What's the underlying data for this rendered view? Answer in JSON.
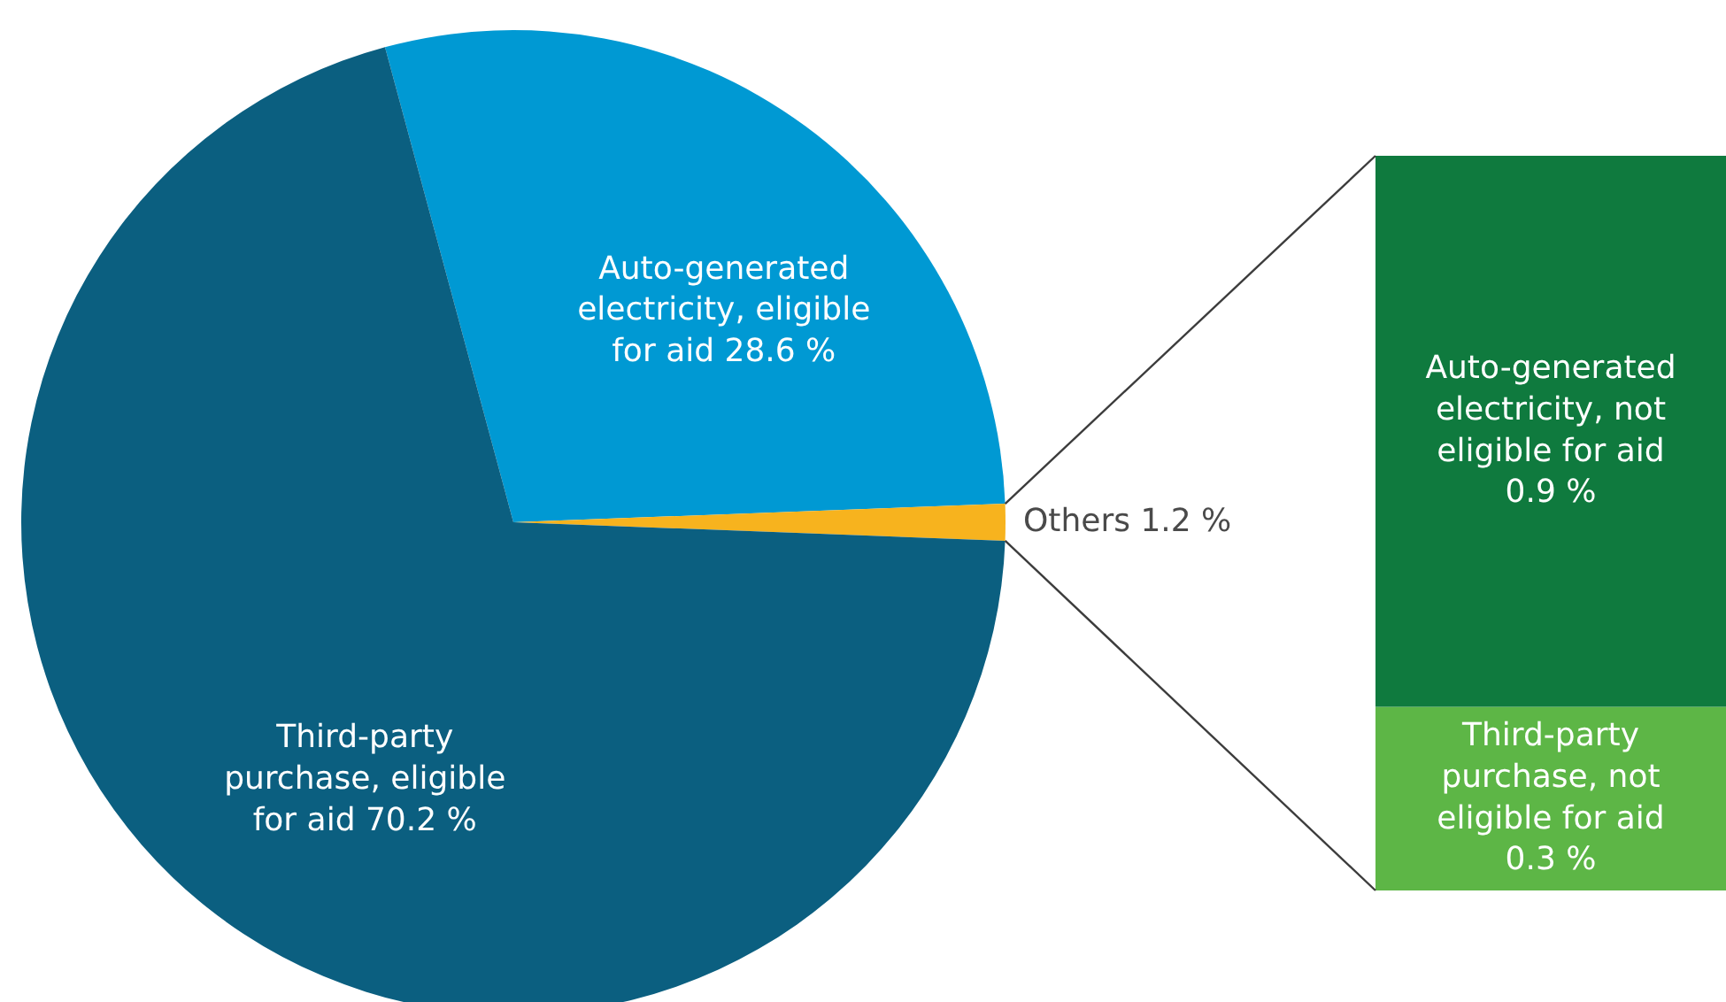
{
  "chart_data": [
    {
      "type": "pie",
      "categories": [
        "Auto-generated electricity, eligible for aid",
        "Others",
        "Third-party purchase, eligible for aid"
      ],
      "values": [
        28.6,
        1.2,
        70.2
      ],
      "value_labels": [
        "28.6 %",
        "1.2 %",
        "70.2 %"
      ],
      "colors": [
        "#0099d3",
        "#f7b31e",
        "#0b5f80"
      ]
    },
    {
      "type": "bar",
      "stacked": true,
      "categories": [
        null
      ],
      "series": [
        {
          "name": "Third-party purchase, not eligible for aid",
          "color": "#5db646",
          "values": [
            0.3
          ],
          "value_labels": [
            "0.3 %"
          ]
        },
        {
          "name": "Auto-generated electricity, not eligible for aid",
          "color": "#0f7a3e",
          "values": [
            0.9
          ],
          "value_labels": [
            "0.9 %"
          ]
        }
      ]
    }
  ]
}
